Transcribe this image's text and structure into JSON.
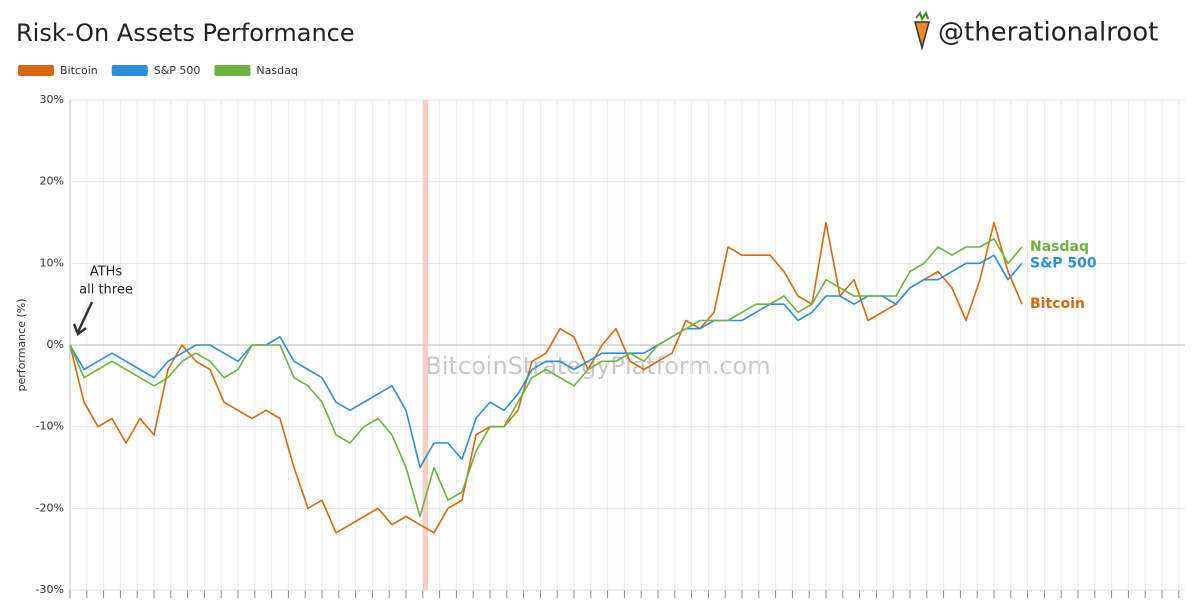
{
  "chart_data": {
    "type": "line",
    "title": "Risk-On Assets Performance",
    "brand": "@therationalroot",
    "watermark": "BitcoinStrategyPlatform.com",
    "y_label": "performance (%)",
    "annotations": [
      "ATHs",
      "all three"
    ],
    "categories": [
      null,
      null,
      null,
      null,
      null,
      null,
      null,
      null,
      null,
      null,
      null,
      null,
      null,
      null,
      null,
      null,
      null,
      null,
      null,
      null,
      null,
      null,
      null,
      null,
      null,
      null,
      null,
      null,
      null,
      null,
      null,
      null,
      null,
      null,
      null,
      null,
      null,
      null,
      null,
      null,
      null,
      null,
      null,
      null,
      null,
      null,
      null,
      null,
      null,
      null,
      null,
      null,
      null,
      null,
      null,
      null,
      null,
      null,
      null,
      null,
      null,
      null,
      null,
      null,
      null,
      null,
      null,
      null,
      null,
      null,
      null,
      null,
      null,
      null,
      null,
      null,
      null,
      null,
      null,
      null
    ],
    "ylim": [
      -30,
      30
    ],
    "yticks": [
      {
        "value": -30,
        "label": "-30%"
      },
      {
        "value": -20,
        "label": "-20%"
      },
      {
        "value": -10,
        "label": "-10%"
      },
      {
        "value": 0,
        "label": "0%"
      },
      {
        "value": 10,
        "label": "10%"
      },
      {
        "value": 20,
        "label": "20%"
      },
      {
        "value": 30,
        "label": "30%"
      }
    ],
    "grid": true,
    "legend": "top-left",
    "series": [
      {
        "name": "Bitcoin",
        "color": "#d9690c",
        "values": [
          0,
          -7,
          -10,
          -9,
          -12,
          -9,
          -11,
          -3,
          0,
          -2,
          -3,
          -7,
          -8,
          -9,
          -8,
          -9,
          -15,
          -20,
          -19,
          -23,
          -22,
          -21,
          -20,
          -22,
          -21,
          -22,
          -23,
          -20,
          -19,
          -11,
          -10,
          -10,
          -8,
          -2,
          -1,
          2,
          1,
          -3,
          0,
          2,
          -2,
          -3,
          -2,
          -1,
          3,
          2,
          4,
          12,
          11,
          11,
          11,
          9,
          6,
          5,
          15,
          6,
          8,
          3,
          4,
          5,
          7,
          8,
          9,
          7,
          3,
          8,
          15,
          9,
          5,
          null,
          null,
          null,
          null,
          null,
          null,
          null,
          null,
          null,
          null,
          null
        ]
      },
      {
        "name": "S&P 500",
        "color": "#2b8fdc",
        "values": [
          0,
          -3,
          -2,
          -1,
          -2,
          -3,
          -4,
          -2,
          -1,
          0,
          0,
          -1,
          -2,
          0,
          0,
          1,
          -2,
          -3,
          -4,
          -7,
          -8,
          -7,
          -6,
          -5,
          -8,
          -15,
          -12,
          -12,
          -14,
          -9,
          -7,
          -8,
          -6,
          -3,
          -2,
          -2,
          -3,
          -2,
          -1,
          -1,
          -1,
          -1,
          0,
          1,
          2,
          2,
          3,
          3,
          3,
          4,
          5,
          5,
          3,
          4,
          6,
          6,
          5,
          6,
          6,
          5,
          7,
          8,
          8,
          9,
          10,
          10,
          11,
          8,
          10,
          null,
          null,
          null,
          null,
          null,
          null,
          null,
          null,
          null,
          null,
          null
        ]
      },
      {
        "name": "Nasdaq",
        "color": "#6db33f",
        "values": [
          0,
          -4,
          -3,
          -2,
          -3,
          -4,
          -5,
          -4,
          -2,
          -1,
          -2,
          -4,
          -3,
          0,
          0,
          0,
          -4,
          -5,
          -7,
          -11,
          -12,
          -10,
          -9,
          -11,
          -15,
          -21,
          -15,
          -19,
          -18,
          -13,
          -10,
          -10,
          -7,
          -4,
          -3,
          -4,
          -5,
          -3,
          -2,
          -2,
          -1,
          -2,
          0,
          1,
          2,
          3,
          3,
          3,
          4,
          5,
          5,
          6,
          4,
          5,
          8,
          7,
          6,
          6,
          6,
          6,
          9,
          10,
          12,
          11,
          12,
          12,
          13,
          10,
          12,
          null,
          null,
          null,
          null,
          null,
          null,
          null,
          null,
          null,
          null,
          null
        ]
      }
    ]
  }
}
